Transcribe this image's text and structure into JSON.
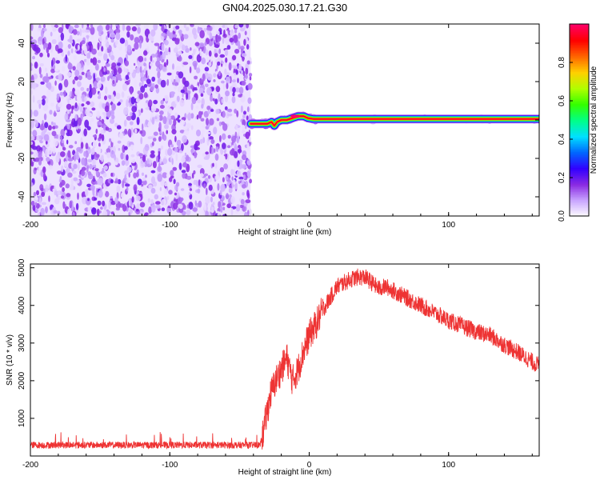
{
  "chart_data": [
    {
      "type": "heatmap",
      "title": "GN04.2025.030.17.21.G30",
      "xlabel": "Height of straight line (km)",
      "ylabel": "Frequency (Hz)",
      "xlim": [
        -200,
        165
      ],
      "ylim": [
        -50,
        50
      ],
      "xticks": [
        "-200",
        "-100",
        "0",
        "100"
      ],
      "yticks": [
        "-40",
        "-20",
        "0",
        "20",
        "40"
      ],
      "noise_region_x": [
        -200,
        -42
      ],
      "signal_track": {
        "x": [
          -42,
          -37,
          -33,
          -30,
          -27,
          -25,
          -23,
          -20,
          -16,
          -12,
          -8,
          -4,
          -1,
          3,
          10,
          50,
          90,
          165
        ],
        "y": [
          -2,
          -2,
          -2,
          -2,
          -1,
          -3,
          -1,
          0,
          0,
          1,
          2,
          2,
          1,
          0.5,
          0.5,
          0.5,
          0.5,
          0.5
        ]
      },
      "colorbar": {
        "label": "Normalized spectral amplitude",
        "range": [
          0,
          1
        ],
        "ticks": [
          "0.0",
          "0.2",
          "0.4",
          "0.6",
          "0.8"
        ],
        "colormap": [
          "#ffffff",
          "#c9a6ff",
          "#8a2be2",
          "#3200ff",
          "#0066ff",
          "#00e0ff",
          "#00ff88",
          "#33ff00",
          "#b0ff00",
          "#ffd000",
          "#ff6600",
          "#ff0000",
          "#ff0066"
        ]
      }
    },
    {
      "type": "line",
      "xlabel": "Height of straight line (km)",
      "ylabel": "SNR (10 * v/v)",
      "xlim": [
        -200,
        165
      ],
      "ylim": [
        0,
        5100
      ],
      "xticks": [
        "-200",
        "-100",
        "0",
        "100"
      ],
      "yticks": [
        "1000",
        "2000",
        "3000",
        "4000",
        "5000"
      ],
      "line_color": "#ee3333",
      "series": [
        {
          "x": [
            -200,
            -160,
            -120,
            -80,
            -40,
            -35,
            -32,
            -28,
            -24,
            -20,
            -16,
            -12,
            -8,
            -4,
            0,
            5,
            10,
            15,
            20,
            25,
            30,
            35,
            40,
            45,
            50,
            55,
            60,
            70,
            80,
            90,
            100,
            110,
            120,
            130,
            140,
            150,
            160,
            165
          ],
          "y": [
            290,
            290,
            290,
            290,
            290,
            300,
            800,
            1600,
            2000,
            2300,
            2600,
            2000,
            2300,
            2800,
            3200,
            3500,
            3900,
            4200,
            4500,
            4600,
            4700,
            4750,
            4750,
            4600,
            4450,
            4500,
            4400,
            4200,
            4000,
            3800,
            3600,
            3450,
            3300,
            3200,
            2950,
            2750,
            2500,
            2400
          ]
        }
      ]
    }
  ]
}
